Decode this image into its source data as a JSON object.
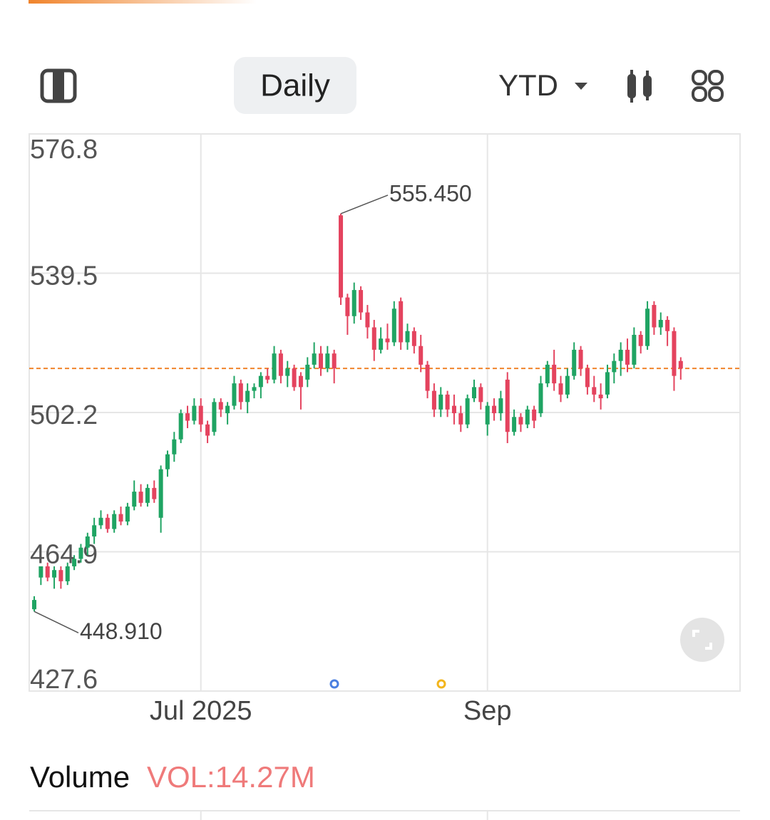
{
  "toolbar": {
    "interval": "Daily",
    "range": "YTD"
  },
  "chart_data": {
    "type": "candlestick",
    "ylim": [
      427.6,
      576.8
    ],
    "yticks": [
      576.8,
      539.5,
      502.2,
      464.9,
      427.6
    ],
    "xlim": [
      -0.75,
      105.9
    ],
    "xticks": [
      {
        "value": 25,
        "label": "Jul 2025"
      },
      {
        "value": 68,
        "label": "Sep"
      }
    ],
    "grid": true,
    "up_color": "#1fa463",
    "down_color": "#e4435e",
    "last_price": 514.0,
    "last_price_color": "#f0842c",
    "annotations": [
      {
        "value": 555.45,
        "label": "555.450",
        "index": 46
      },
      {
        "value": 448.91,
        "label": "448.910",
        "index": 0
      }
    ],
    "candles": [
      [
        449.5,
        453,
        448.91,
        452
      ],
      [
        458,
        461,
        456,
        461
      ],
      [
        461,
        462,
        457,
        458
      ],
      [
        458,
        461,
        455,
        460
      ],
      [
        460,
        461,
        455,
        457
      ],
      [
        457,
        462,
        456,
        461
      ],
      [
        461,
        464,
        460,
        463
      ],
      [
        463,
        467,
        462,
        466
      ],
      [
        466,
        470,
        464,
        469
      ],
      [
        469,
        474,
        467,
        472
      ],
      [
        472,
        476,
        471,
        474
      ],
      [
        474,
        475,
        470,
        471
      ],
      [
        471,
        476,
        470,
        475
      ],
      [
        475,
        477,
        472,
        473
      ],
      [
        473,
        478,
        472,
        477
      ],
      [
        477,
        484,
        476,
        481
      ],
      [
        481,
        483,
        477,
        478
      ],
      [
        478,
        483,
        477,
        482
      ],
      [
        482,
        484,
        478,
        479
      ],
      [
        474,
        488,
        470,
        487
      ],
      [
        487,
        492,
        485,
        491
      ],
      [
        491,
        497,
        489,
        495
      ],
      [
        495,
        503,
        494,
        502
      ],
      [
        502,
        504,
        498,
        500
      ],
      [
        500,
        506,
        499,
        504
      ],
      [
        504,
        506,
        497,
        499
      ],
      [
        499,
        500,
        494,
        496
      ],
      [
        497,
        506,
        496,
        505
      ],
      [
        505,
        506,
        501,
        503
      ],
      [
        502,
        505,
        499,
        504
      ],
      [
        504,
        512,
        503,
        510
      ],
      [
        510,
        511,
        503,
        505
      ],
      [
        505,
        510,
        502,
        508
      ],
      [
        508,
        510,
        506,
        509
      ],
      [
        509,
        513,
        506,
        512
      ],
      [
        512,
        514,
        510,
        511
      ],
      [
        511,
        520,
        510,
        518
      ],
      [
        518,
        519,
        510,
        512
      ],
      [
        512,
        516,
        509,
        514
      ],
      [
        514,
        515,
        508,
        509
      ],
      [
        512,
        513,
        503,
        509
      ],
      [
        511,
        517,
        509,
        515
      ],
      [
        515,
        521,
        514,
        518
      ],
      [
        518,
        520,
        512,
        514
      ],
      [
        514,
        520,
        513,
        518
      ],
      [
        518,
        519,
        510,
        514
      ],
      [
        555,
        555.45,
        531,
        533
      ],
      [
        533,
        534,
        523,
        528
      ],
      [
        528,
        537,
        526,
        535
      ],
      [
        535,
        536,
        527,
        529
      ],
      [
        529,
        531,
        522,
        525
      ],
      [
        525,
        527,
        516,
        519
      ],
      [
        519,
        525,
        518,
        522
      ],
      [
        522,
        526,
        519,
        521
      ],
      [
        521,
        532,
        520,
        530
      ],
      [
        532,
        533,
        519,
        521
      ],
      [
        521,
        526,
        519,
        524
      ],
      [
        524,
        525,
        518,
        520
      ],
      [
        520,
        523,
        513,
        515
      ],
      [
        515,
        516,
        506,
        508
      ],
      [
        508,
        510,
        501,
        503
      ],
      [
        503,
        509,
        501,
        507
      ],
      [
        507,
        508,
        501,
        503
      ],
      [
        504,
        507,
        499,
        502
      ],
      [
        502,
        504,
        497,
        499
      ],
      [
        499,
        507,
        498,
        506
      ],
      [
        506,
        511,
        505,
        509
      ],
      [
        509,
        510,
        503,
        505
      ],
      [
        499,
        505,
        496,
        504
      ],
      [
        504,
        506,
        500,
        502
      ],
      [
        502,
        508,
        500,
        506
      ],
      [
        511,
        513,
        494,
        497
      ],
      [
        497,
        503,
        496,
        501
      ],
      [
        501,
        502,
        497,
        499
      ],
      [
        499,
        504,
        498,
        503
      ],
      [
        503,
        504,
        498,
        500
      ],
      [
        502,
        512,
        501,
        510
      ],
      [
        510,
        516,
        509,
        515
      ],
      [
        515,
        519,
        508,
        510
      ],
      [
        510,
        512,
        505,
        507
      ],
      [
        507,
        514,
        506,
        512
      ],
      [
        512,
        521,
        511,
        519
      ],
      [
        519,
        520,
        512,
        514
      ],
      [
        514,
        515,
        507,
        509
      ],
      [
        509,
        512,
        505,
        507
      ],
      [
        507,
        510,
        503,
        506
      ],
      [
        507,
        515,
        506,
        513
      ],
      [
        513,
        518,
        510,
        516
      ],
      [
        516,
        521,
        512,
        519
      ],
      [
        519,
        522,
        513,
        515
      ],
      [
        515,
        525,
        514,
        523
      ],
      [
        523,
        524,
        518,
        520
      ],
      [
        520,
        532,
        519,
        530
      ],
      [
        531,
        532,
        523,
        525
      ],
      [
        525,
        529,
        523,
        527
      ],
      [
        527,
        528,
        520,
        524
      ],
      [
        524,
        525,
        508,
        512
      ],
      [
        516,
        517,
        511,
        514
      ]
    ]
  },
  "volume": {
    "title": "Volume",
    "label": "VOL:14.27M"
  }
}
